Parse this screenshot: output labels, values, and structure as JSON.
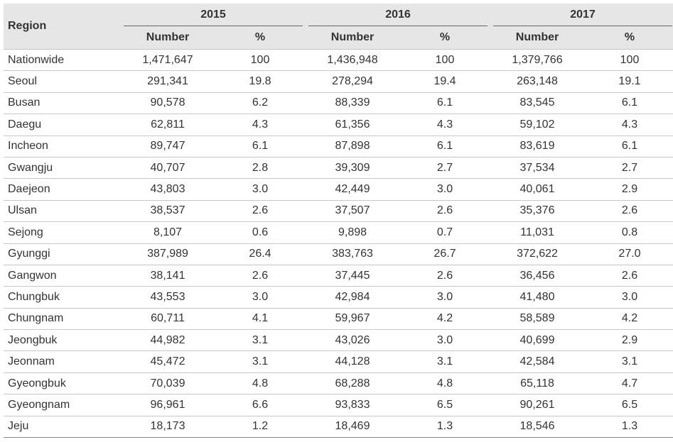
{
  "table": {
    "region_header": "Region",
    "years": [
      "2015",
      "2016",
      "2017"
    ],
    "sub_headers": {
      "number": "Number",
      "percent": "%"
    },
    "rows": [
      {
        "region": "Nationwide",
        "cells": [
          "1,471,647",
          "100",
          "1,436,948",
          "100",
          "1,379,766",
          "100"
        ]
      },
      {
        "region": "Seoul",
        "cells": [
          "291,341",
          "19.8",
          "278,294",
          "19.4",
          "263,148",
          "19.1"
        ]
      },
      {
        "region": "Busan",
        "cells": [
          "90,578",
          "6.2",
          "88,339",
          "6.1",
          "83,545",
          "6.1"
        ]
      },
      {
        "region": "Daegu",
        "cells": [
          "62,811",
          "4.3",
          "61,356",
          "4.3",
          "59,102",
          "4.3"
        ]
      },
      {
        "region": "Incheon",
        "cells": [
          "89,747",
          "6.1",
          "87,898",
          "6.1",
          "83,619",
          "6.1"
        ]
      },
      {
        "region": "Gwangju",
        "cells": [
          "40,707",
          "2.8",
          "39,309",
          "2.7",
          "37,534",
          "2.7"
        ]
      },
      {
        "region": "Daejeon",
        "cells": [
          "43,803",
          "3.0",
          "42,449",
          "3.0",
          "40,061",
          "2.9"
        ]
      },
      {
        "region": "Ulsan",
        "cells": [
          "38,537",
          "2.6",
          "37,507",
          "2.6",
          "35,376",
          "2.6"
        ]
      },
      {
        "region": "Sejong",
        "cells": [
          "8,107",
          "0.6",
          "9,898",
          "0.7",
          "11,031",
          "0.8"
        ]
      },
      {
        "region": "Gyunggi",
        "cells": [
          "387,989",
          "26.4",
          "383,763",
          "26.7",
          "372,622",
          "27.0"
        ]
      },
      {
        "region": "Gangwon",
        "cells": [
          "38,141",
          "2.6",
          "37,445",
          "2.6",
          "36,456",
          "2.6"
        ]
      },
      {
        "region": "Chungbuk",
        "cells": [
          "43,553",
          "3.0",
          "42,984",
          "3.0",
          "41,480",
          "3.0"
        ]
      },
      {
        "region": "Chungnam",
        "cells": [
          "60,711",
          "4.1",
          "59,967",
          "4.2",
          "58,589",
          "4.2"
        ]
      },
      {
        "region": "Jeongbuk",
        "cells": [
          "44,982",
          "3.1",
          "43,026",
          "3.0",
          "40,699",
          "2.9"
        ]
      },
      {
        "region": "Jeonnam",
        "cells": [
          "45,472",
          "3.1",
          "44,128",
          "3.1",
          "42,584",
          "3.1"
        ]
      },
      {
        "region": "Gyeongbuk",
        "cells": [
          "70,039",
          "4.8",
          "68,288",
          "4.8",
          "65,118",
          "4.7"
        ]
      },
      {
        "region": "Gyeongnam",
        "cells": [
          "96,961",
          "6.6",
          "93,833",
          "6.5",
          "90,261",
          "6.5"
        ]
      },
      {
        "region": "Jeju",
        "cells": [
          "18,173",
          "1.2",
          "18,469",
          "1.3",
          "18,546",
          "1.3"
        ]
      }
    ]
  },
  "colors": {
    "header_bg": "#e6e6e6",
    "text": "#333333",
    "row_border": "#c8c8c8"
  }
}
